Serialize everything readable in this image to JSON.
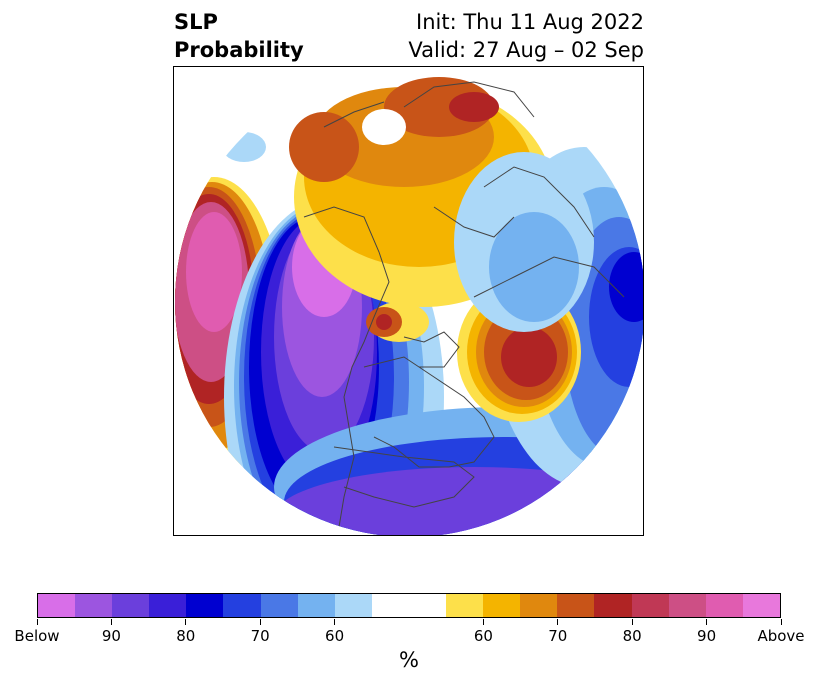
{
  "title": {
    "left_line1": "SLP",
    "left_line2": "Probability",
    "right_line1": "Init: Thu 11 Aug 2022",
    "right_line2": "Valid: 27 Aug – 02 Sep"
  },
  "map": {
    "projection": "north-polar stereographic",
    "variable": "sea level pressure tercile probability"
  },
  "colorbar": {
    "colors": [
      "#d86ee8",
      "#9c55e0",
      "#6b3fdc",
      "#3a1fd8",
      "#0000d0",
      "#2440e0",
      "#4a78e6",
      "#74b2f0",
      "#abd8f8",
      "#ffffff",
      "#ffffff",
      "#fde04a",
      "#f4b400",
      "#e0880e",
      "#c85418",
      "#b02424",
      "#c03855",
      "#cd4f85",
      "#e05cb0",
      "#e878dc"
    ],
    "tick_labels": [
      "Below",
      "90",
      "80",
      "70",
      "60",
      "60",
      "70",
      "80",
      "90",
      "Above"
    ],
    "unit": "%"
  }
}
